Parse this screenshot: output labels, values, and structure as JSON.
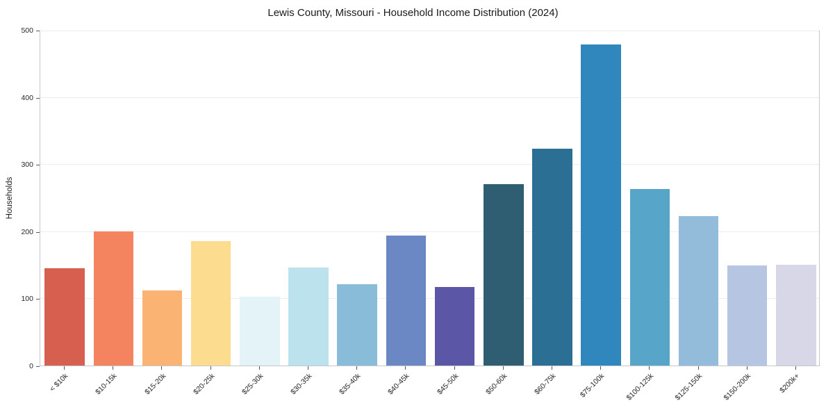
{
  "chart_data": {
    "type": "bar",
    "title": "Lewis County, Missouri - Household Income Distribution (2024)",
    "xlabel": "",
    "ylabel": "Households",
    "ylim": [
      0,
      500
    ],
    "yticks": [
      0,
      100,
      200,
      300,
      400,
      500
    ],
    "grid": "horizontal",
    "legend": "none",
    "categories": [
      "< $10k",
      "$10-15k",
      "$15-20k",
      "$20-25k",
      "$25-30k",
      "$30-35k",
      "$35-40k",
      "$40-45k",
      "$45-50k",
      "$50-60k",
      "$60-75k",
      "$75-100k",
      "$100-125k",
      "$125-150k",
      "$150-200k",
      "$200k+"
    ],
    "values": [
      145,
      200,
      112,
      185,
      103,
      146,
      121,
      194,
      117,
      270,
      323,
      478,
      263,
      223,
      149,
      150
    ],
    "colors": [
      "#d65f50",
      "#f4845f",
      "#fbb374",
      "#fcdd90",
      "#e4f3f7",
      "#bce2ee",
      "#89bcd9",
      "#6b87c4",
      "#5c56a6",
      "#2f5e72",
      "#2b7094",
      "#2f87bd",
      "#58a5ca",
      "#92bcda",
      "#b6c5e1",
      "#d8d7e8"
    ]
  }
}
